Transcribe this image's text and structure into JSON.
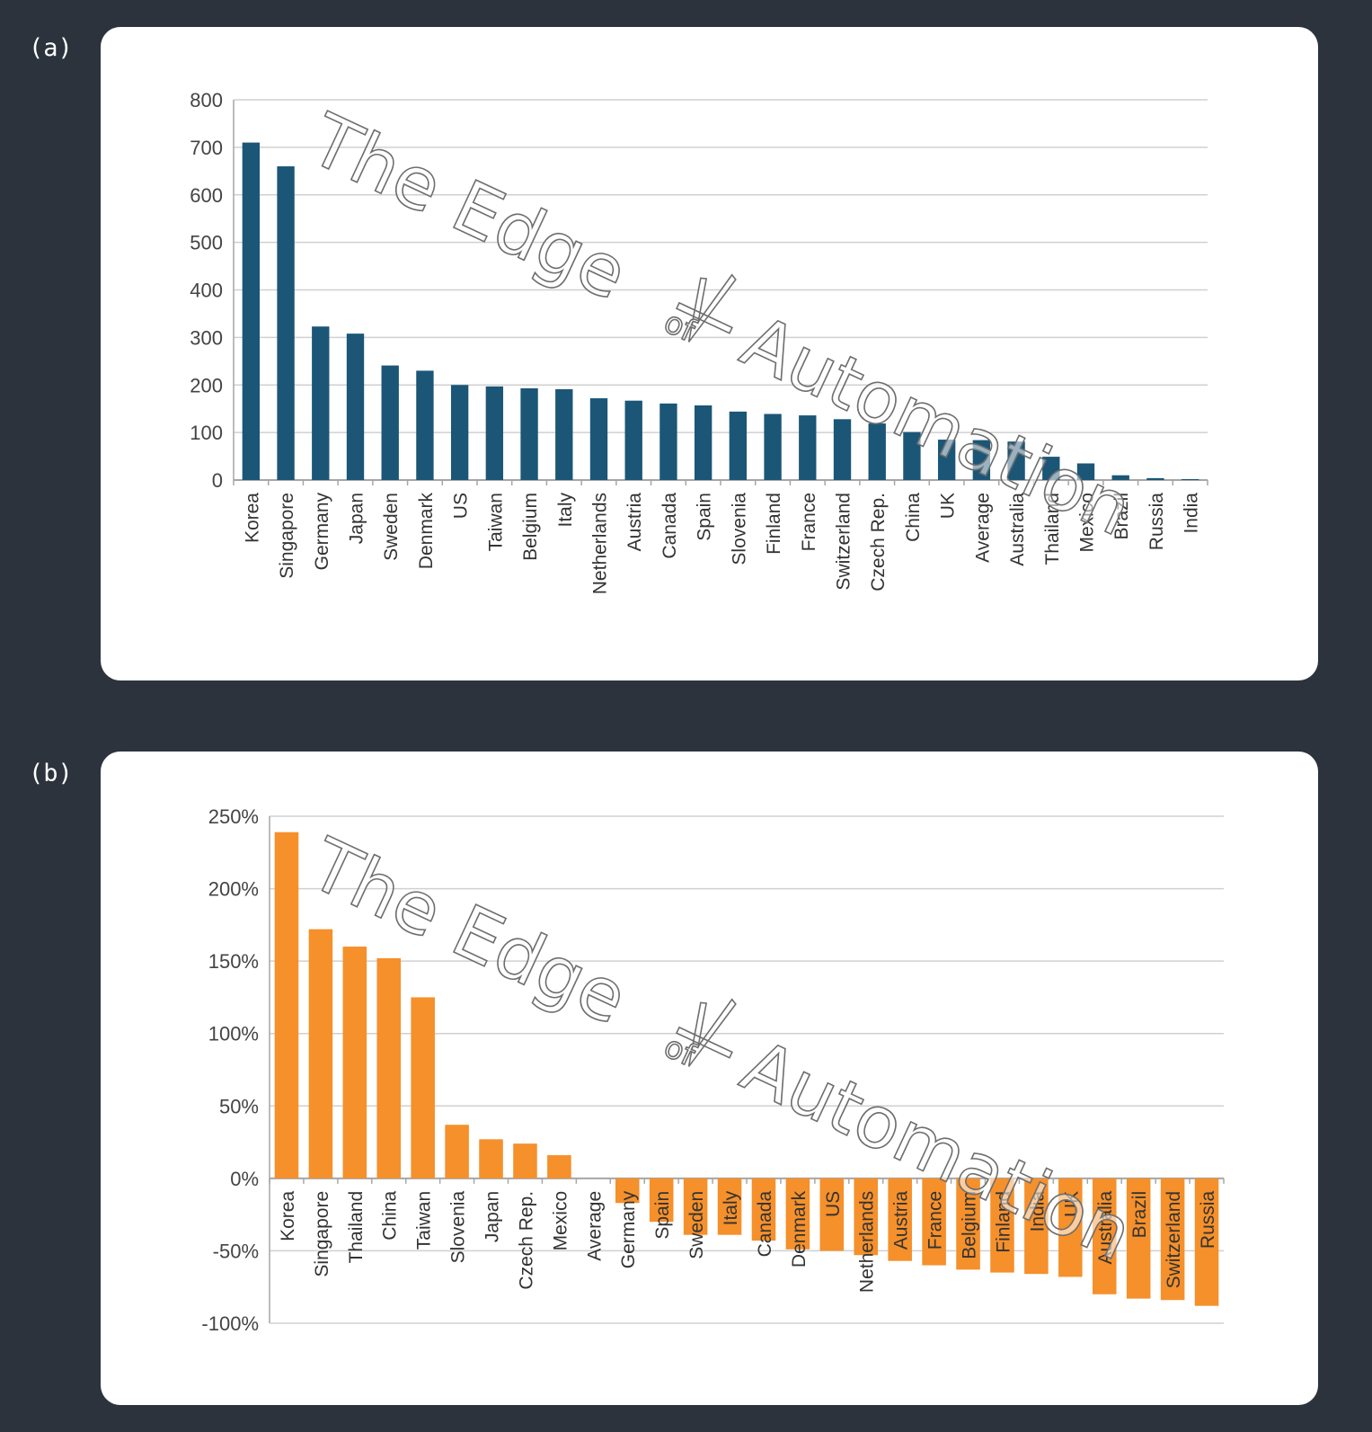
{
  "panels": {
    "a_label": "(a)",
    "b_label": "(b)"
  },
  "watermark": {
    "text_before": "The Edge",
    "text_of": "of",
    "text_after": "Automation"
  },
  "colors": {
    "background": "#2c333d",
    "bar_a": "#1b5677",
    "bar_b": "#f5902b",
    "grid": "#d0d0d0",
    "axis": "#a6a6a6"
  },
  "chart_data": [
    {
      "type": "bar",
      "title": "",
      "xlabel": "",
      "ylabel": "",
      "ylim": [
        0,
        800
      ],
      "yticks": [
        0,
        100,
        200,
        300,
        400,
        500,
        600,
        700,
        800
      ],
      "ytick_labels": [
        "0",
        "100",
        "200",
        "300",
        "400",
        "500",
        "600",
        "700",
        "800"
      ],
      "grid": true,
      "categories": [
        "Korea",
        "Singapore",
        "Germany",
        "Japan",
        "Sweden",
        "Denmark",
        "US",
        "Taiwan",
        "Belgium",
        "Italy",
        "Netherlands",
        "Austria",
        "Canada",
        "Spain",
        "Slovenia",
        "Finland",
        "France",
        "Switzerland",
        "Czech Rep.",
        "China",
        "UK",
        "Average",
        "Australia",
        "Thailand",
        "Mexico",
        "Brazil",
        "Russia",
        "India"
      ],
      "values": [
        710,
        660,
        323,
        308,
        241,
        230,
        200,
        197,
        193,
        191,
        172,
        167,
        161,
        157,
        144,
        139,
        136,
        128,
        119,
        101,
        85,
        84,
        81,
        49,
        35,
        10,
        4,
        2
      ]
    },
    {
      "type": "bar",
      "title": "",
      "xlabel": "",
      "ylabel": "",
      "ylim": [
        -100,
        250
      ],
      "yticks": [
        -100,
        -50,
        0,
        50,
        100,
        150,
        200,
        250
      ],
      "ytick_labels": [
        "-100%",
        "-50%",
        "0%",
        "50%",
        "100%",
        "150%",
        "200%",
        "250%"
      ],
      "grid": true,
      "categories": [
        "Korea",
        "Singapore",
        "Thailand",
        "China",
        "Taiwan",
        "Slovenia",
        "Japan",
        "Czech Rep.",
        "Mexico",
        "Average",
        "Germany",
        "Spain",
        "Sweden",
        "Italy",
        "Canada",
        "Denmark",
        "US",
        "Netherlands",
        "Austria",
        "France",
        "Belgium",
        "Finland",
        "India",
        "UK",
        "Australia",
        "Brazil",
        "Switzerland",
        "Russia"
      ],
      "values": [
        239,
        172,
        160,
        152,
        125,
        37,
        27,
        24,
        16,
        0,
        -17,
        -30,
        -39,
        -39,
        -43,
        -49,
        -50,
        -53,
        -57,
        -60,
        -63,
        -65,
        -66,
        -68,
        -80,
        -83,
        -84,
        -88
      ]
    }
  ]
}
